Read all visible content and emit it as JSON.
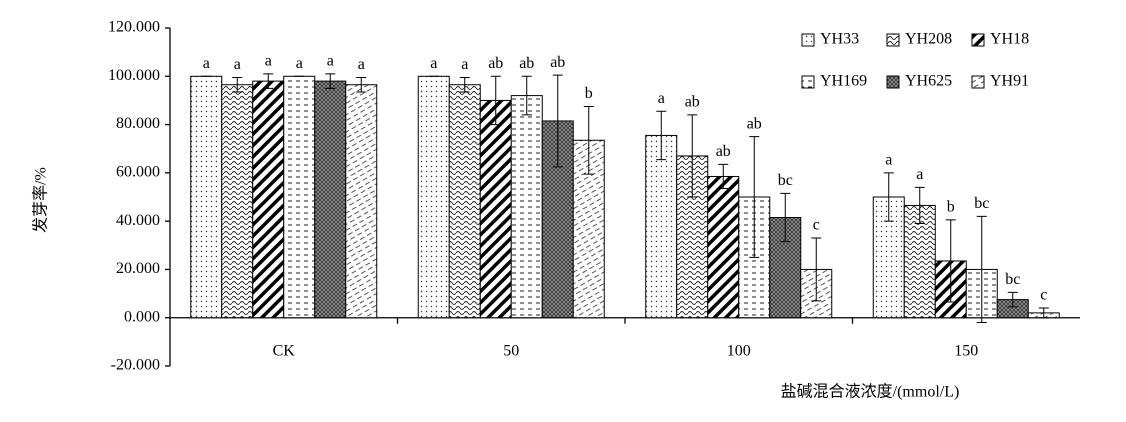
{
  "chart_data": {
    "type": "bar",
    "y_label": "发芽率/%",
    "x_label": "盐碱混合液浓度/(mmol/L)",
    "categories": [
      "CK",
      "50",
      "100",
      "150"
    ],
    "ylim": [
      -20,
      120
    ],
    "yticks": [
      {
        "value": -20,
        "label": "-20.000"
      },
      {
        "value": 0,
        "label": "0.000"
      },
      {
        "value": 20,
        "label": "20.000"
      },
      {
        "value": 40,
        "label": "40.000"
      },
      {
        "value": 60,
        "label": "60.000"
      },
      {
        "value": 80,
        "label": "80.000"
      },
      {
        "value": 100,
        "label": "100.000"
      },
      {
        "value": 120,
        "label": "120.000"
      }
    ],
    "legend": "top-right",
    "series": [
      {
        "name": "YH33",
        "pattern": "dots",
        "values": [
          100,
          100,
          75.5,
          50
        ],
        "errors": [
          0,
          0,
          10,
          10
        ],
        "letters": [
          "a",
          "a",
          "a",
          "a"
        ]
      },
      {
        "name": "YH208",
        "pattern": "waves",
        "values": [
          96.5,
          96.5,
          67,
          46.5
        ],
        "errors": [
          3,
          3,
          17,
          7.5
        ],
        "letters": [
          "a",
          "a",
          "ab",
          "a"
        ]
      },
      {
        "name": "YH18",
        "pattern": "stripes",
        "values": [
          98,
          90,
          58.5,
          23.5
        ],
        "errors": [
          3,
          10,
          5,
          17
        ],
        "letters": [
          "a",
          "ab",
          "ab",
          "b"
        ]
      },
      {
        "name": "YH169",
        "pattern": "dashes",
        "values": [
          100,
          92,
          50,
          20
        ],
        "errors": [
          0,
          8,
          25,
          22
        ],
        "letters": [
          "a",
          "ab",
          "ab",
          "bc"
        ]
      },
      {
        "name": "YH625",
        "pattern": "cross",
        "values": [
          98,
          81.5,
          41.5,
          7.5
        ],
        "errors": [
          3,
          19,
          10,
          3
        ],
        "letters": [
          "a",
          "ab",
          "bc",
          "bc"
        ]
      },
      {
        "name": "YH91",
        "pattern": "lightdash",
        "values": [
          96.5,
          73.5,
          20,
          2
        ],
        "errors": [
          3,
          14,
          13,
          2
        ],
        "letters": [
          "a",
          "b",
          "c",
          "c"
        ]
      }
    ]
  }
}
